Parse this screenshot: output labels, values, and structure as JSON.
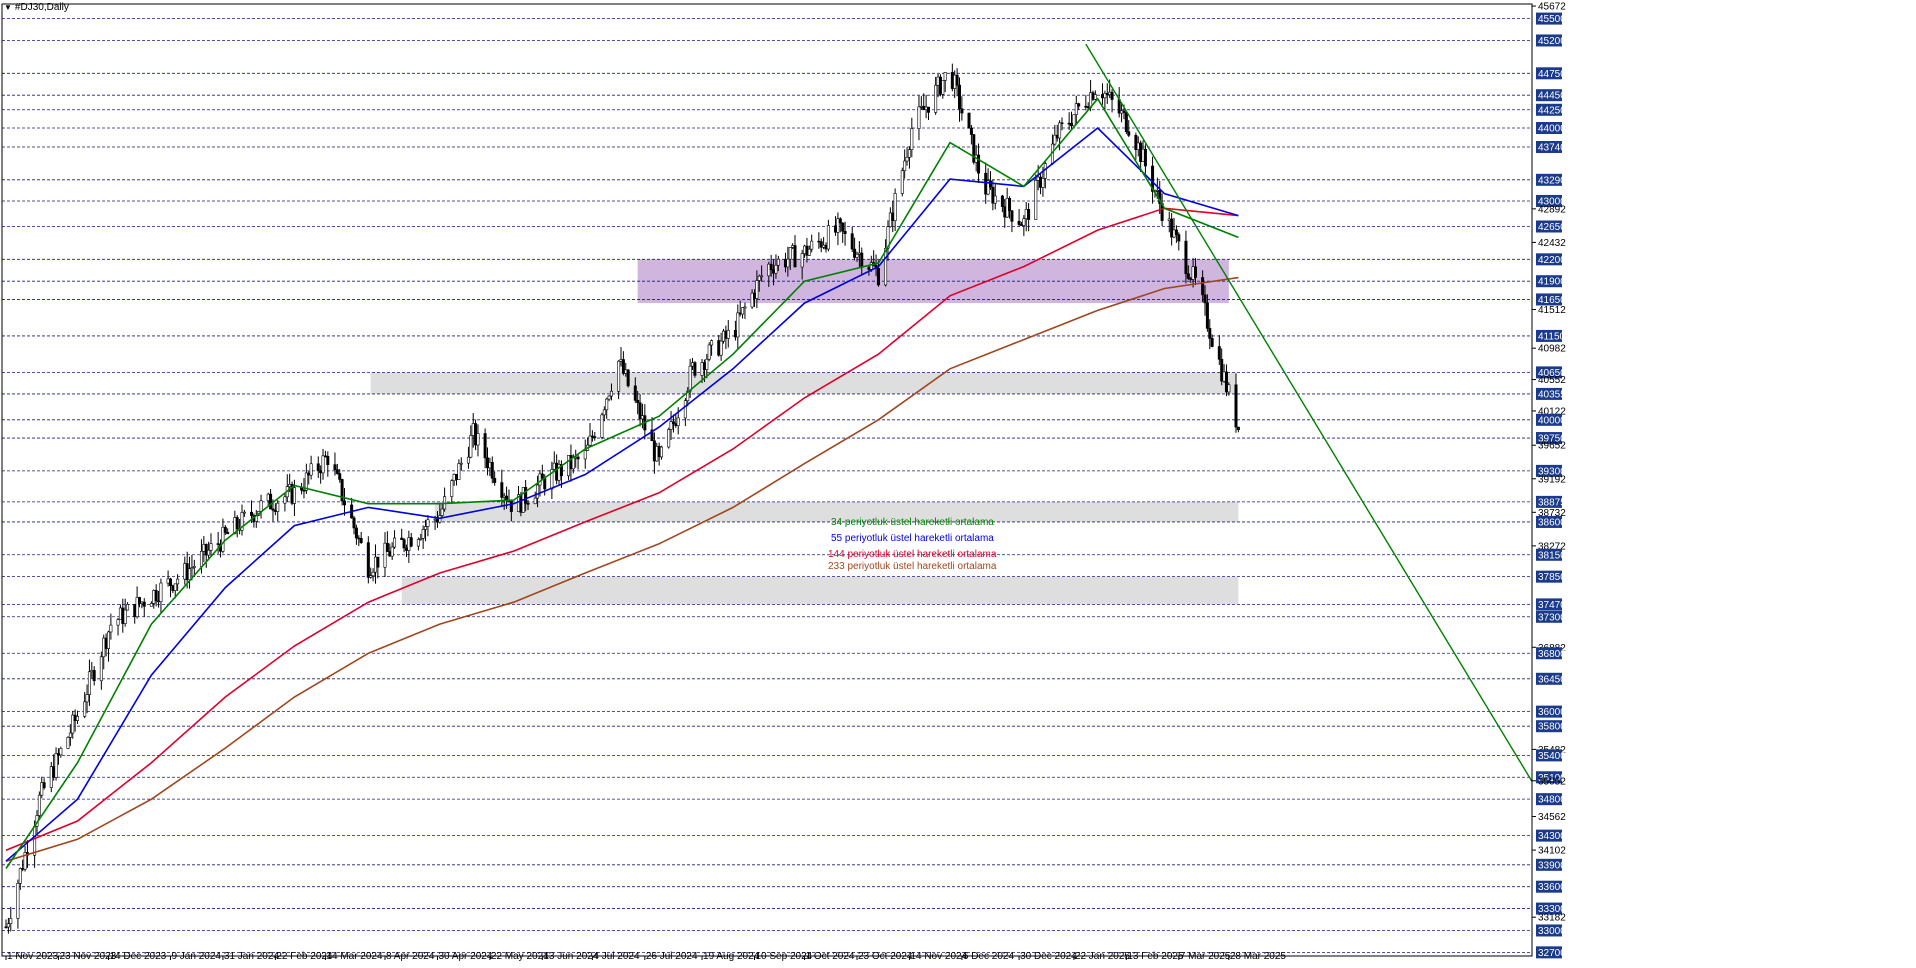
{
  "window": {
    "symbol_label": "#DJ30,Daily",
    "dropdown_icon": "triangle-down-icon"
  },
  "colors": {
    "up": "#000000",
    "down": "#000000",
    "grid": "#1a1a80",
    "ema34": "#008000",
    "ema55": "#0000e0",
    "ema144": "#e0002a",
    "ema233": "#a0461e",
    "trendline": "#008000",
    "purple_zone": "#c8a8d8",
    "gray_zone": "#d8d8d8",
    "label_box": "#1a3a8c",
    "label_text": "#ffffff"
  },
  "legend": [
    {
      "text": "34 periyotluk üstel hareketli ortalama",
      "color": "#008000"
    },
    {
      "text": "55 periyotluk üstel hareketli ortalama",
      "color": "#0000e0"
    },
    {
      "text": "144 periyotluk üstel hareketli ortalama",
      "color": "#e0002a"
    },
    {
      "text": "233 periyotluk üstel hareketli ortalama",
      "color": "#a0461e"
    }
  ],
  "chart_data": {
    "type": "candlestick",
    "title": "#DJ30,Daily",
    "ylim": [
      32650,
      45700
    ],
    "x_range": [
      "1 Nov 2023",
      "31 Mar 2025"
    ],
    "x_tick_labels": [
      "1 Nov 2023",
      "23 Nov 2023",
      "14 Dec 2023",
      "9 Jan 2024",
      "31 Jan 2024",
      "22 Feb 2024",
      "14 Mar 2024",
      "8 Apr 2024",
      "30 Apr 2024",
      "22 May 2024",
      "13 Jun 2024",
      "4 Jul 2024",
      "26 Jul 2024",
      "19 Aug 2024",
      "10 Sep 2024",
      "1 Oct 2024",
      "23 Oct 2024",
      "14 Nov 2024",
      "6 Dec 2024",
      "30 Dec 2024",
      "22 Jan 2025",
      "13 Feb 2025",
      "7 Mar 2025",
      "28 Mar 2025"
    ],
    "level_lines": [
      45500,
      45200,
      44750,
      44450,
      44250,
      44000,
      43740,
      43290,
      43000,
      42650,
      42200,
      41900,
      41650,
      41150,
      40650,
      40355,
      40000,
      39750,
      39300,
      38875,
      38600,
      38150,
      37850,
      37470,
      37300,
      36800,
      36450,
      36000,
      35800,
      35400,
      35100,
      34800,
      34300,
      33900,
      33600,
      33300,
      33000,
      32700
    ],
    "price_scale_labels": [
      45672,
      45500,
      45200,
      44750,
      44450,
      44250,
      44000,
      43740,
      43290,
      43000,
      42892,
      42650,
      42432,
      42200,
      41900,
      41650,
      41512,
      41150,
      40982,
      40650,
      40552,
      40355,
      40122,
      40000,
      39750,
      39652,
      39300,
      39192,
      38875,
      38732,
      38600,
      38272,
      38150,
      37850,
      37470,
      37300,
      36882,
      36800,
      36450,
      36000,
      35800,
      35482,
      35400,
      35100,
      35052,
      34800,
      34562,
      34300,
      34102,
      33900,
      33600,
      33300,
      33182,
      33000,
      32700
    ],
    "boxed_price_labels": [
      45500,
      45200,
      44750,
      44450,
      44250,
      44000,
      43740,
      43290,
      43000,
      42650,
      42200,
      41900,
      41650,
      41150,
      40650,
      40355,
      40000,
      39750,
      39300,
      38875,
      38600,
      38150,
      37850,
      37470,
      37300,
      36800,
      36450,
      36000,
      35800,
      35400,
      35100,
      34800,
      34300,
      33900,
      33600,
      33300,
      33000,
      32700
    ],
    "zones": [
      {
        "kind": "purple",
        "from_date": "23 Jul 2024",
        "to_date": "28 Mar 2025",
        "price_low": 41600,
        "price_high": 42200
      },
      {
        "kind": "gray",
        "from_date": "2 Apr 2024",
        "to_date": "31 Mar 2025",
        "price_low": 40355,
        "price_high": 40650
      },
      {
        "kind": "gray",
        "from_date": "29 Apr 2024",
        "to_date": "1 Apr 2025",
        "price_low": 38600,
        "price_high": 38875
      },
      {
        "kind": "gray",
        "from_date": "15 Apr 2024",
        "to_date": "1 Apr 2025",
        "price_low": 37470,
        "price_high": 37850
      }
    ],
    "trendline": {
      "from": {
        "date": "27 Jan 2025",
        "price": 45150
      },
      "to": {
        "date": "1 Jun 2025",
        "price": 38400
      }
    },
    "candles": {
      "dates": [
        "1 Nov 2023",
        "15 Nov 2023",
        "1 Dec 2023",
        "15 Dec 2023",
        "1 Jan 2024",
        "15 Jan 2024",
        "1 Feb 2024",
        "15 Feb 2024",
        "1 Mar 2024",
        "15 Mar 2024",
        "1 Apr 2024",
        "15 Apr 2024",
        "1 May 2024",
        "15 May 2024",
        "1 Jun 2024",
        "15 Jun 2024",
        "1 Jul 2024",
        "15 Jul 2024",
        "1 Aug 2024",
        "15 Aug 2024",
        "1 Sep 2024",
        "15 Sep 2024",
        "1 Oct 2024",
        "15 Oct 2024",
        "1 Nov 2024",
        "15 Nov 2024",
        "1 Dec 2024",
        "15 Dec 2024",
        "1 Jan 2025",
        "15 Jan 2025",
        "1 Feb 2025",
        "15 Feb 2025",
        "1 Mar 2025",
        "15 Mar 2025",
        "1 Apr 2025"
      ],
      "close": [
        33050,
        34800,
        35950,
        37200,
        37600,
        37900,
        38400,
        38800,
        39000,
        39500,
        38000,
        38300,
        38700,
        39800,
        38800,
        39200,
        39500,
        40800,
        39400,
        40700,
        41200,
        42100,
        42300,
        42600,
        42000,
        44000,
        44800,
        43200,
        42700,
        43900,
        44600,
        44000,
        42800,
        41800,
        39900
      ]
    },
    "ema34": {
      "dates": [
        "1 Nov 2023",
        "1 Dec 2023",
        "1 Jan 2024",
        "1 Feb 2024",
        "1 Mar 2024",
        "1 Apr 2024",
        "1 May 2024",
        "1 Jun 2024",
        "1 Jul 2024",
        "1 Aug 2024",
        "1 Sep 2024",
        "1 Oct 2024",
        "1 Nov 2024",
        "1 Dec 2024",
        "1 Jan 2025",
        "1 Feb 2025",
        "1 Mar 2025",
        "1 Apr 2025"
      ],
      "values": [
        33850,
        35300,
        37200,
        38350,
        39100,
        38850,
        38850,
        38900,
        39600,
        40050,
        40900,
        41900,
        42150,
        43800,
        43200,
        44400,
        42900,
        42500
      ]
    },
    "ema55": {
      "dates": [
        "1 Nov 2023",
        "1 Dec 2023",
        "1 Jan 2024",
        "1 Feb 2024",
        "1 Mar 2024",
        "1 Apr 2024",
        "1 May 2024",
        "1 Jun 2024",
        "1 Jul 2024",
        "1 Aug 2024",
        "1 Sep 2024",
        "1 Oct 2024",
        "1 Nov 2024",
        "1 Dec 2024",
        "1 Jan 2025",
        "1 Feb 2025",
        "1 Mar 2025",
        "1 Apr 2025"
      ],
      "values": [
        33950,
        34800,
        36500,
        37700,
        38550,
        38800,
        38650,
        38850,
        39250,
        39900,
        40700,
        41600,
        42100,
        43300,
        43200,
        44000,
        43100,
        42800
      ]
    },
    "ema144": {
      "dates": [
        "1 Nov 2023",
        "1 Dec 2023",
        "1 Jan 2024",
        "1 Feb 2024",
        "1 Mar 2024",
        "1 Apr 2024",
        "1 May 2024",
        "1 Jun 2024",
        "1 Jul 2024",
        "1 Aug 2024",
        "1 Sep 2024",
        "1 Oct 2024",
        "1 Nov 2024",
        "1 Dec 2024",
        "1 Jan 2025",
        "1 Feb 2025",
        "1 Mar 2025",
        "1 Apr 2025"
      ],
      "values": [
        34100,
        34500,
        35300,
        36200,
        36900,
        37500,
        37900,
        38200,
        38600,
        39000,
        39600,
        40300,
        40900,
        41700,
        42100,
        42600,
        42900,
        42800
      ]
    },
    "ema233": {
      "dates": [
        "1 Nov 2023",
        "1 Dec 2023",
        "1 Jan 2024",
        "1 Feb 2024",
        "1 Mar 2024",
        "1 Apr 2024",
        "1 May 2024",
        "1 Jun 2024",
        "1 Jul 2024",
        "1 Aug 2024",
        "1 Sep 2024",
        "1 Oct 2024",
        "1 Nov 2024",
        "1 Dec 2024",
        "1 Jan 2025",
        "1 Feb 2025",
        "1 Mar 2025",
        "1 Apr 2025"
      ],
      "values": [
        33950,
        34250,
        34800,
        35500,
        36200,
        36800,
        37200,
        37500,
        37900,
        38300,
        38800,
        39400,
        40000,
        40700,
        41100,
        41500,
        41800,
        41950
      ]
    }
  }
}
